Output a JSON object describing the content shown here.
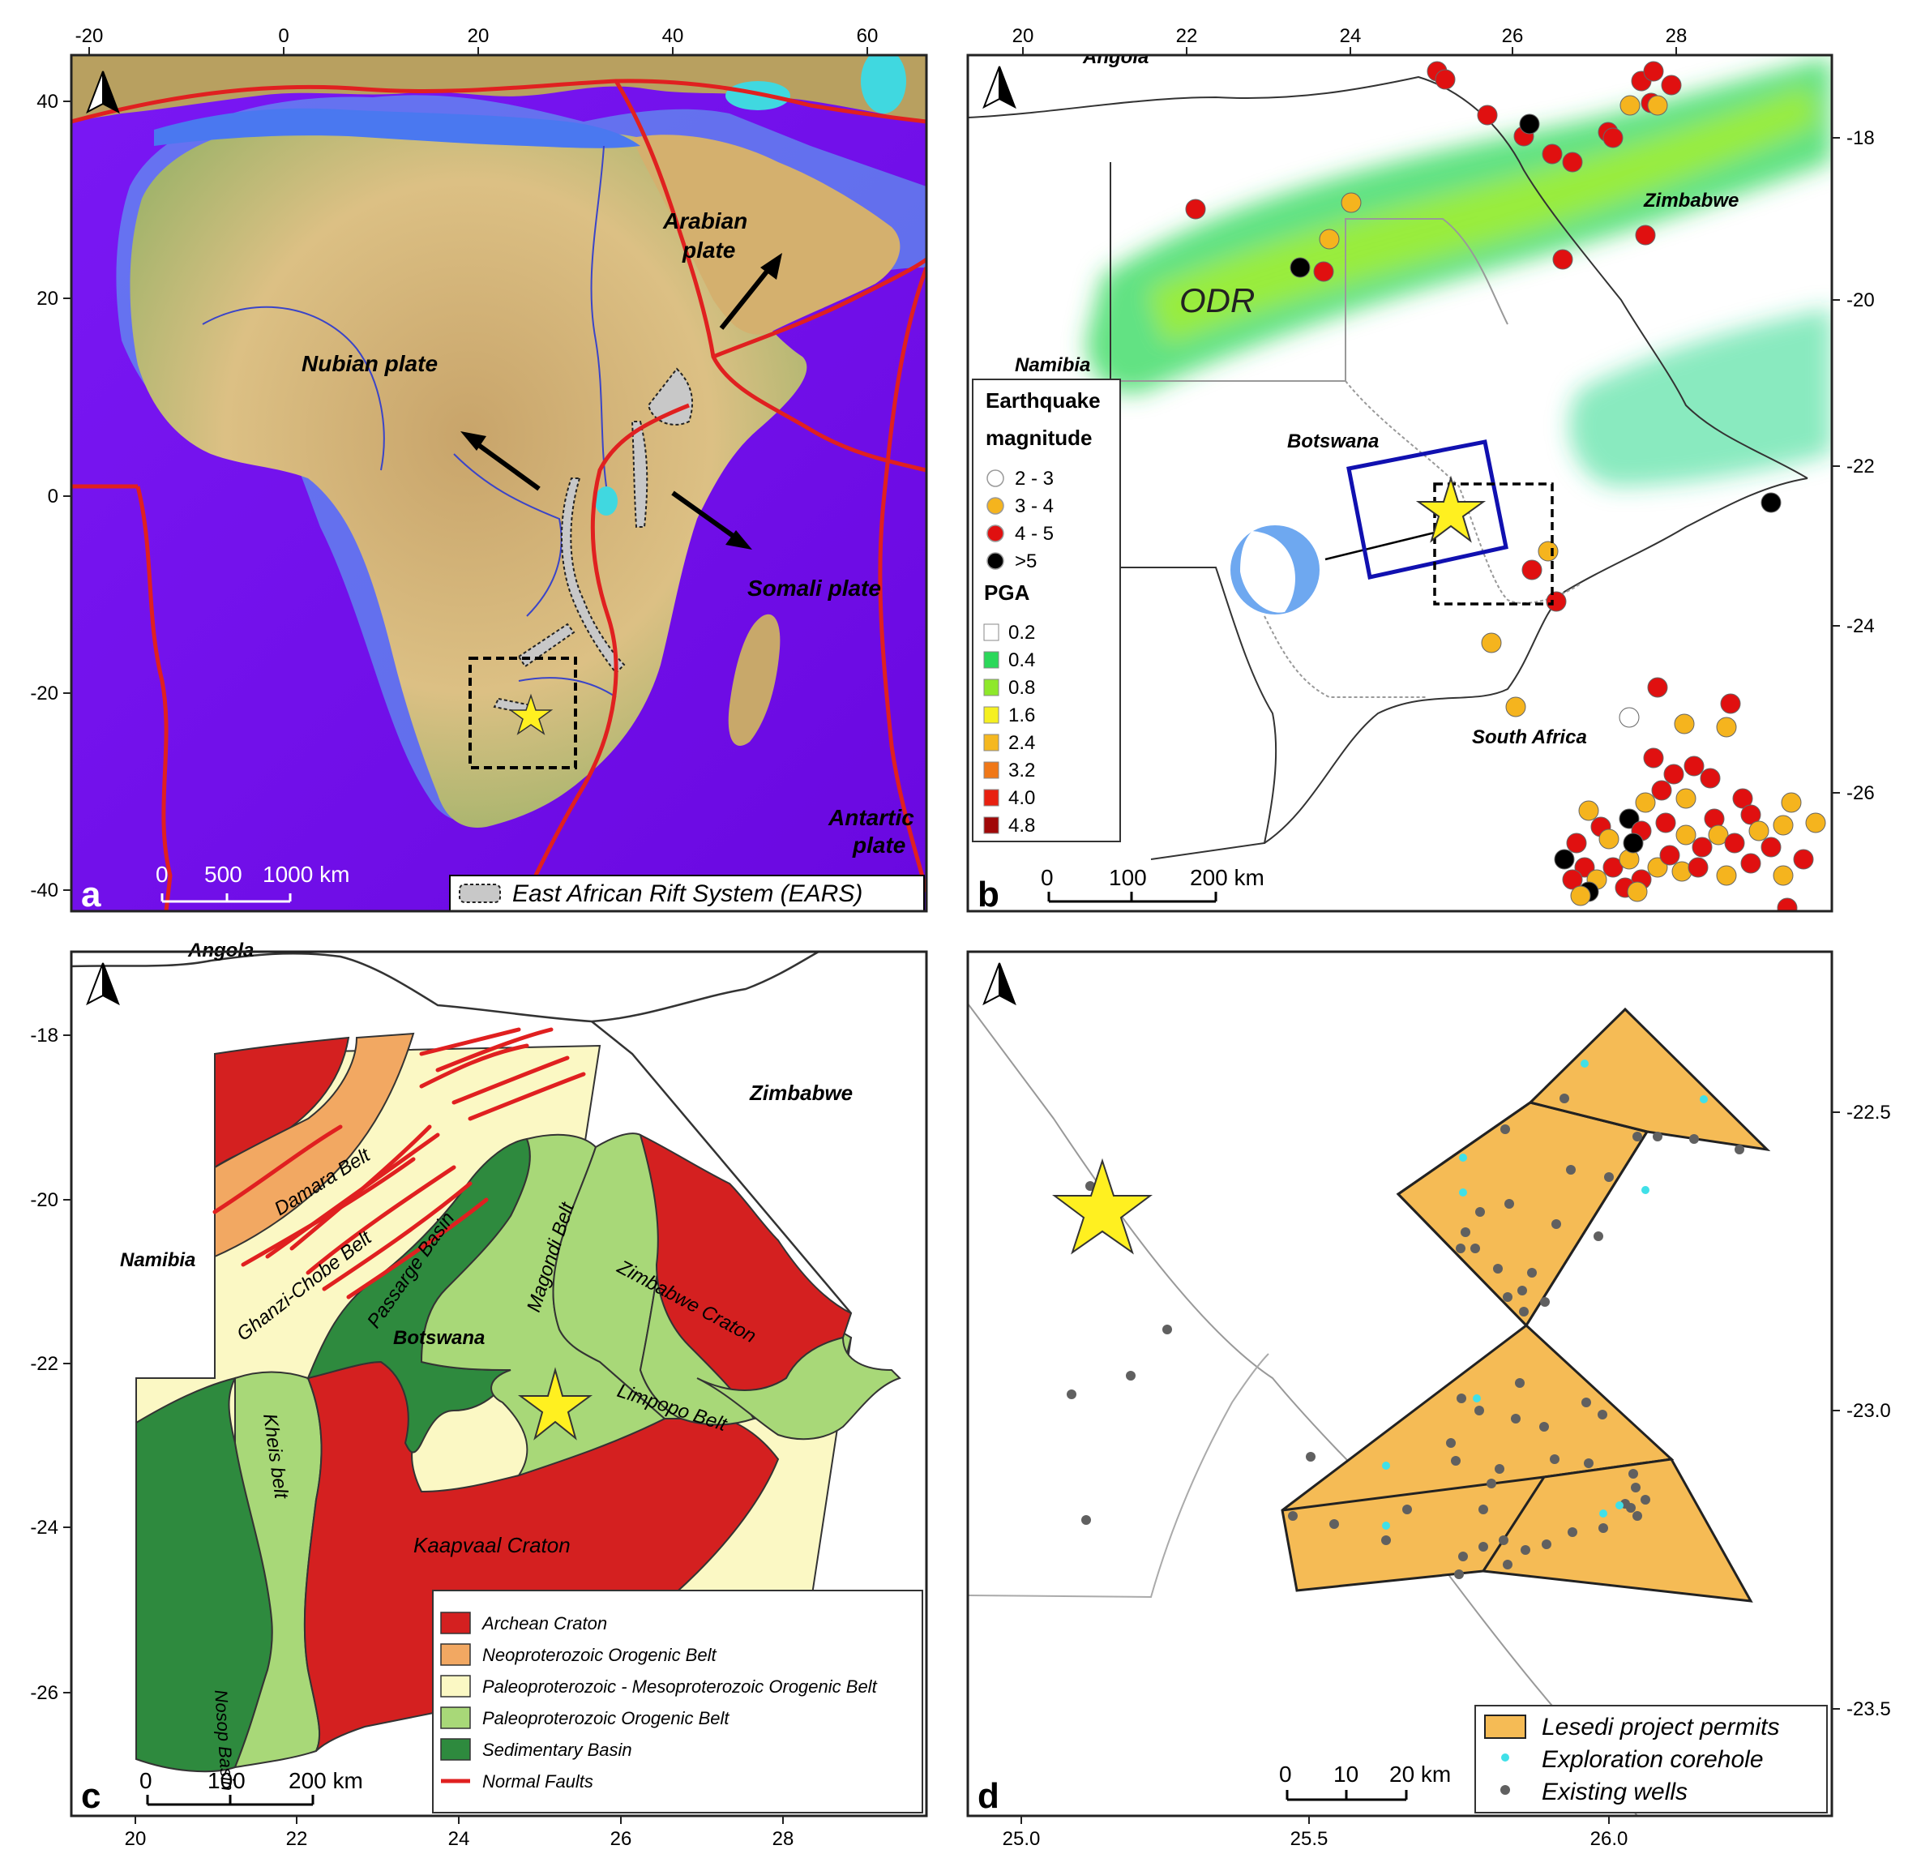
{
  "panels": {
    "a": {
      "letter": "a",
      "top_ticks": [
        "-20",
        "0",
        "20",
        "40",
        "60"
      ],
      "left_ticks": [
        "40",
        "20",
        "0",
        "-20",
        "-40"
      ],
      "labels": {
        "nubian": "Nubian plate",
        "arabian_1": "Arabian",
        "arabian_2": "plate",
        "somali": "Somali plate",
        "antartic_1": "Antartic",
        "antartic_2": "plate"
      },
      "scale": {
        "zero": "0",
        "mid": "500",
        "end": "1000 km"
      },
      "legend_ears": "East African Rift System (EARS)"
    },
    "b": {
      "letter": "b",
      "top_ticks": [
        "20",
        "22",
        "24",
        "26",
        "28"
      ],
      "right_ticks": [
        "-18",
        "-20",
        "-22",
        "-24",
        "-26"
      ],
      "labels": {
        "angola": "Angola",
        "zimbabwe": "Zimbabwe",
        "odr": "ODR",
        "namibia": "Namibia",
        "botswana": "Botswana",
        "south_africa": "South Africa"
      },
      "legend": {
        "title1": "Earthquake",
        "title2": "magnitude",
        "eq_classes": [
          {
            "label": "2 - 3",
            "color": "#ffffff"
          },
          {
            "label": "3 - 4",
            "color": "#f5b41e"
          },
          {
            "label": "4 - 5",
            "color": "#e01010"
          },
          {
            "label": ">5",
            "color": "#000000"
          }
        ],
        "pga_title": "PGA",
        "pga_classes": [
          {
            "label": "0.2",
            "color": "#ffffff"
          },
          {
            "label": "0.4",
            "color": "#2cd85a"
          },
          {
            "label": "0.8",
            "color": "#8ee82a"
          },
          {
            "label": "1.6",
            "color": "#f5f020"
          },
          {
            "label": "2.4",
            "color": "#f5b820"
          },
          {
            "label": "3.2",
            "color": "#f07818"
          },
          {
            "label": "4.0",
            "color": "#e82010"
          },
          {
            "label": "4.8",
            "color": "#a00808"
          }
        ]
      },
      "scale": {
        "zero": "0",
        "mid": "100",
        "end": "200 km"
      }
    },
    "c": {
      "letter": "c",
      "left_ticks": [
        "-18",
        "-20",
        "-22",
        "-24",
        "-26"
      ],
      "bottom_ticks": [
        "20",
        "22",
        "24",
        "26",
        "28"
      ],
      "labels": {
        "angola": "Angola",
        "zimbabwe": "Zimbabwe",
        "namibia": "Namibia",
        "botswana": "Botswana",
        "damara": "Damara Belt",
        "ghanzi": "Ghanzi-Chobe Belt",
        "passarge": "Passarge Basin",
        "magondi": "Magondi Belt",
        "zim_craton": "Zimbabwe Craton",
        "limpopo": "Limpopo Belt",
        "kheis": "Kheis belt",
        "kaapvaal": "Kaapvaal Craton",
        "nosop": "Nosop Basin"
      },
      "legend": [
        {
          "label": "Archean Craton",
          "color": "#d42020"
        },
        {
          "label": "Neoproterozoic Orogenic Belt",
          "color": "#f2a862"
        },
        {
          "label": "Paleoproterozoic - Mesoproterozoic Orogenic Belt",
          "color": "#fbf8c4"
        },
        {
          "label": "Paleoproterozoic  Orogenic Belt",
          "color": "#a8d878"
        },
        {
          "label": "Sedimentary Basin",
          "color": "#2e8a3e"
        },
        {
          "label": "Normal Faults",
          "color": "#e02020"
        }
      ],
      "scale": {
        "zero": "0",
        "mid": "100",
        "end": "200 km"
      }
    },
    "d": {
      "letter": "d",
      "right_ticks": [
        "-22.5",
        "-23.0",
        "-23.5"
      ],
      "bottom_ticks": [
        "25.0",
        "25.5",
        "26.0"
      ],
      "legend": {
        "permits": "Lesedi project permits",
        "corehole": "Exploration corehole",
        "wells": "Existing wells"
      },
      "scale": {
        "zero": "0",
        "mid": "10",
        "end": "20 km"
      }
    }
  },
  "colors": {
    "ocean": "#8a10f0",
    "land": "#d8b878",
    "plate_boundary": "#e02020",
    "permit_fill": "#f5bb55",
    "corehole": "#40e0e8",
    "well": "#606060",
    "star": "#fff020",
    "frame": "#222222"
  }
}
